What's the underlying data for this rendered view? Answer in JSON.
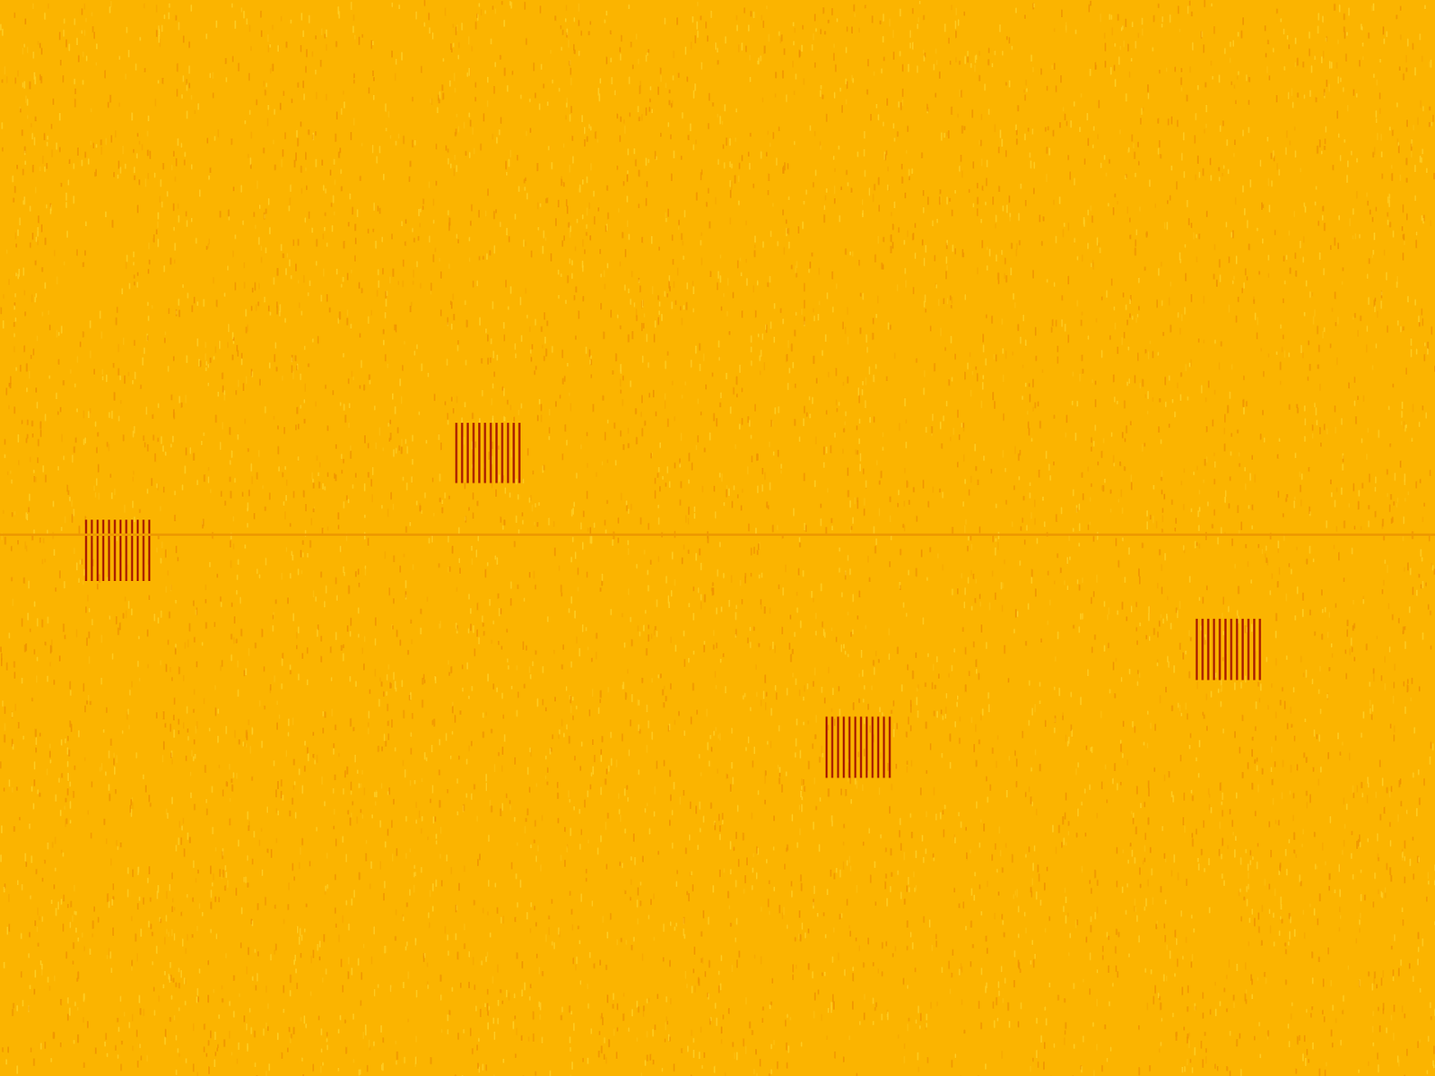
{
  "chart_data": {
    "type": "spectrogram",
    "xlim": [
      0,
      1
    ],
    "ylim": [
      0,
      1
    ],
    "tick_labels": false,
    "grid": false,
    "bursts": [
      {
        "line_x": [
          0.06,
          0.064,
          0.068,
          0.072,
          0.076,
          0.08,
          0.084,
          0.088,
          0.092,
          0.096,
          0.1,
          0.104
        ],
        "y": [
          0.46,
          0.517
        ]
      },
      {
        "line_x": [
          0.318,
          0.322,
          0.326,
          0.33,
          0.334,
          0.338,
          0.342,
          0.346,
          0.35,
          0.354,
          0.358,
          0.362
        ],
        "y": [
          0.551,
          0.607
        ]
      },
      {
        "line_x": [
          0.576,
          0.58,
          0.584,
          0.588,
          0.592,
          0.596,
          0.6,
          0.604,
          0.608,
          0.612,
          0.616,
          0.62
        ],
        "y": [
          0.277,
          0.334
        ]
      },
      {
        "line_x": [
          0.834,
          0.838,
          0.842,
          0.846,
          0.85,
          0.854,
          0.858,
          0.862,
          0.866,
          0.87,
          0.874,
          0.878
        ],
        "y": [
          0.368,
          0.425
        ]
      }
    ],
    "color": "#a81a00",
    "tone": {
      "y": 0.503,
      "color": "#ee9a00"
    }
  }
}
